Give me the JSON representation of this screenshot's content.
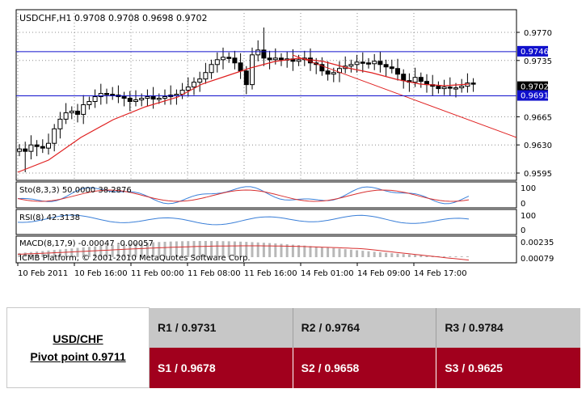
{
  "chart": {
    "symbol_label": "USDCHF,H1  0.9708 0.9708 0.9698 0.9702",
    "price_ticks": [
      "0.9770",
      "0.9735",
      "0.9665",
      "0.9630",
      "0.9595"
    ],
    "level_labels": [
      "0.9746",
      "0.9702",
      "0.9691"
    ],
    "stoch": {
      "label": "Sto(8,3,3) 50.0000 38.2876",
      "ticks": [
        "100",
        "0"
      ]
    },
    "rsi": {
      "label": "RSI(8) 42.3138",
      "ticks": [
        "100",
        "0"
      ]
    },
    "macd": {
      "label": "MACD(8,17,9) -0.00047 -0.00057",
      "ticks": [
        "0.00235",
        "0.00079"
      ]
    },
    "copyright": "ICMB Platform, © 2001-2010 MetaQuotes Software Corp.",
    "time_labels": [
      "10 Feb 2011",
      "10 Feb 16:00",
      "11 Feb 00:00",
      "11 Feb 08:00",
      "11 Feb 16:00",
      "14 Feb 01:00",
      "14 Feb 09:00",
      "14 Feb 17:00"
    ],
    "colors": {
      "candle": "#000000",
      "grid": "#8c8c8c",
      "moving_average": "#e02020",
      "level_line": "#1010cc",
      "stoch_main": "#3a7fd8",
      "stoch_signal": "#d83030",
      "rsi": "#3a7fd8",
      "macd_bar": "#b8b8b8",
      "macd_signal": "#d83030"
    }
  },
  "pivot": {
    "title": "USD/CHF",
    "pivot_point": "Pivot point 0.9711",
    "resistance": [
      "R1 / 0.9731",
      "R2 / 0.9764",
      "R3 / 0.9784"
    ],
    "support": [
      "S1 / 0.9678",
      "S2 / 0.9658",
      "S3 / 0.9625"
    ],
    "colors": {
      "resistance_bg": "#c7c7c7",
      "support_bg": "#a1001d"
    }
  }
}
